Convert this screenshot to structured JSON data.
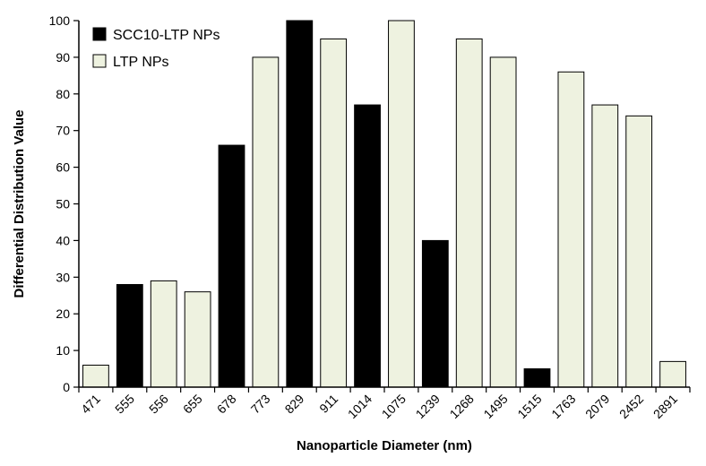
{
  "chart_data": {
    "type": "bar",
    "title": "",
    "xlabel": "Nanoparticle Diameter (nm)",
    "ylabel": "Differential Distribution Value",
    "ylim": [
      0,
      100
    ],
    "yticks": [
      0,
      10,
      20,
      30,
      40,
      50,
      60,
      70,
      80,
      90,
      100
    ],
    "grid": false,
    "legend_position": "top-left",
    "categories": [
      "471",
      "555",
      "556",
      "655",
      "678",
      "773",
      "829",
      "911",
      "1014",
      "1075",
      "1239",
      "1268",
      "1495",
      "1515",
      "1763",
      "2079",
      "2452",
      "2891"
    ],
    "values": [
      6,
      28,
      29,
      26,
      66,
      90,
      100,
      95,
      77,
      100,
      40,
      95,
      90,
      5,
      86,
      77,
      74,
      7
    ],
    "groups": [
      "LTP NPs",
      "SCC10-LTP NPs",
      "LTP NPs",
      "LTP NPs",
      "SCC10-LTP NPs",
      "LTP NPs",
      "SCC10-LTP NPs",
      "LTP NPs",
      "SCC10-LTP NPs",
      "LTP NPs",
      "SCC10-LTP NPs",
      "LTP NPs",
      "LTP NPs",
      "SCC10-LTP NPs",
      "LTP NPs",
      "LTP NPs",
      "LTP NPs",
      "LTP NPs"
    ],
    "series": [
      {
        "name": "SCC10-LTP NPs",
        "color": "#000000"
      },
      {
        "name": "LTP NPs",
        "color": "#eef2e0"
      }
    ]
  }
}
